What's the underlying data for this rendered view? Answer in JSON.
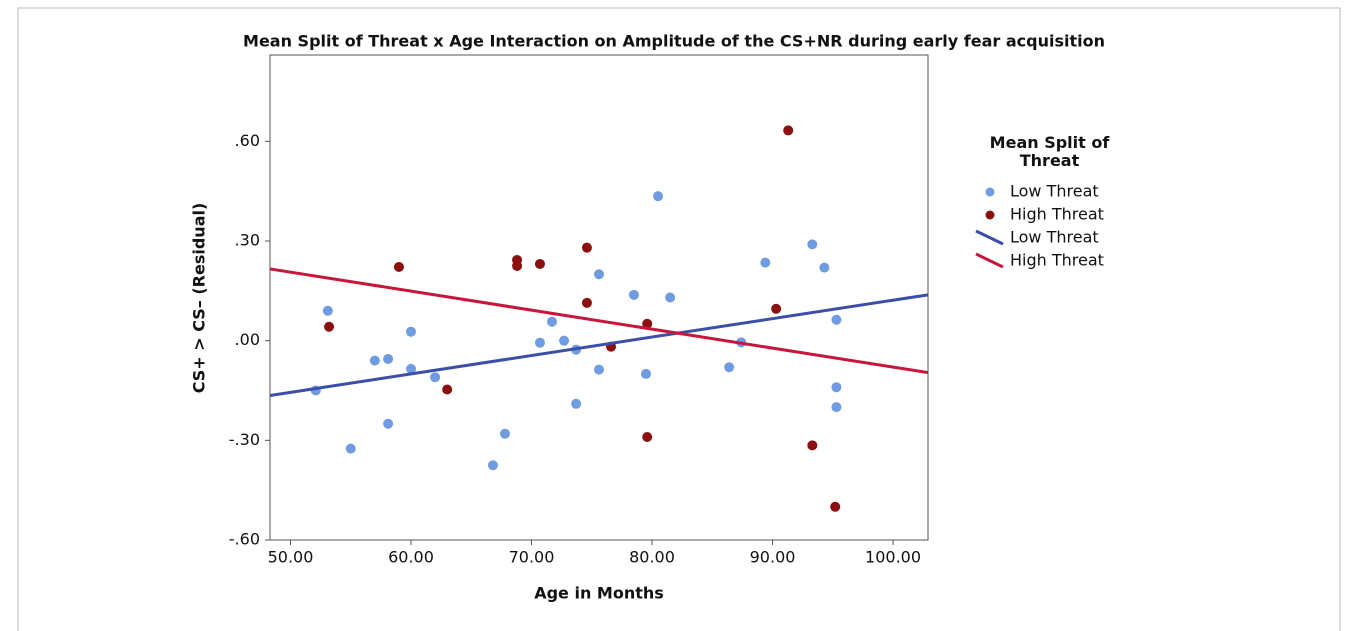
{
  "chart_data": {
    "type": "scatter",
    "title": "Mean Split of Threat x Age Interaction on Amplitude of the CS+NR during early fear acquisition",
    "x_label": "Age in Months",
    "y_label": "CS+ > CS– (Residual)",
    "legend_title": "Mean Split of Threat",
    "legend": "right",
    "grid": false,
    "xlim": [
      48.3,
      102.9
    ],
    "ylim": [
      -0.6,
      0.86
    ],
    "xticks": [
      {
        "value": 50,
        "label": "50.00"
      },
      {
        "value": 60,
        "label": "60.00"
      },
      {
        "value": 70,
        "label": "70.00"
      },
      {
        "value": 80,
        "label": "80.00"
      },
      {
        "value": 90,
        "label": "90.00"
      },
      {
        "value": 100,
        "label": "100.00"
      }
    ],
    "yticks": [
      {
        "value": -0.6,
        "label": "-.60"
      },
      {
        "value": -0.3,
        "label": "-.30"
      },
      {
        "value": 0,
        "label": ".00"
      },
      {
        "value": 0.3,
        "label": ".30"
      },
      {
        "value": 0.6,
        "label": ".60"
      }
    ],
    "series": [
      {
        "name": "Low Threat",
        "color": "#6f9be0",
        "mark": "point",
        "x": [
          52.1,
          53.1,
          55,
          57,
          58.1,
          58.1,
          60,
          60,
          62,
          66.8,
          67.8,
          70.7,
          71.7,
          72.7,
          73.7,
          73.7,
          75.6,
          75.6,
          78.5,
          79.5,
          80.5,
          81.5,
          86.4,
          87.4,
          89.4,
          93.3,
          94.3,
          95.3,
          95.3,
          95.3
        ],
        "values": [
          -0.15,
          0.09,
          -0.325,
          -0.06,
          -0.055,
          -0.25,
          0.027,
          -0.085,
          -0.11,
          -0.375,
          -0.28,
          -0.006,
          0.057,
          0.0,
          -0.027,
          -0.19,
          -0.087,
          0.2,
          0.138,
          -0.1,
          0.435,
          0.13,
          -0.08,
          -0.005,
          0.235,
          0.29,
          0.22,
          0.063,
          -0.14,
          -0.2
        ]
      },
      {
        "name": "High Threat",
        "color": "#8b1111",
        "mark": "point",
        "x": [
          53.2,
          59,
          63,
          68.8,
          68.8,
          70.7,
          74.6,
          74.6,
          76.6,
          79.6,
          79.6,
          90.3,
          91.3,
          93.3,
          95.2
        ],
        "values": [
          0.042,
          0.222,
          -0.147,
          0.243,
          0.225,
          0.231,
          0.28,
          0.114,
          -0.018,
          0.051,
          -0.29,
          0.096,
          0.633,
          -0.315,
          -0.5
        ]
      },
      {
        "name": "Low Threat",
        "color": "#3b4fa8",
        "mark": "line",
        "x": [
          48.3,
          102.9
        ],
        "values": [
          -0.165,
          0.138
        ]
      },
      {
        "name": "High Threat",
        "color": "#c8163a",
        "mark": "line",
        "x": [
          48.3,
          102.9
        ],
        "values": [
          0.216,
          -0.096
        ]
      }
    ]
  }
}
